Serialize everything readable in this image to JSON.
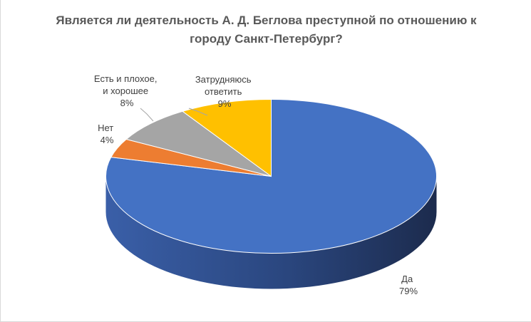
{
  "chart_data": {
    "type": "pie",
    "title": "Является ли деятельность А. Д. Беглова преступной по отношению к городу Санкт-Петербург?",
    "three_d": true,
    "start_angle_deg": -90,
    "direction": "clockwise",
    "slices": [
      {
        "label": "Да",
        "value": 79,
        "value_label": "79%",
        "color": "#4472C4",
        "dark": "#1F2E52"
      },
      {
        "label": "Нет",
        "value": 4,
        "value_label": "4%",
        "color": "#ED7D31",
        "dark": "#8A4516"
      },
      {
        "label": "Есть и плохое, и хорошее",
        "label_lines": [
          "Есть и плохое,",
          "и хорошее"
        ],
        "value": 8,
        "value_label": "8%",
        "color": "#A5A5A5",
        "dark": "#5E5E5E"
      },
      {
        "label": "Затрудняюсь ответить",
        "label_lines": [
          "Затрудняюсь",
          "ответить"
        ],
        "value": 9,
        "value_label": "9%",
        "color": "#FFC000",
        "dark": "#8F6B00"
      }
    ]
  }
}
